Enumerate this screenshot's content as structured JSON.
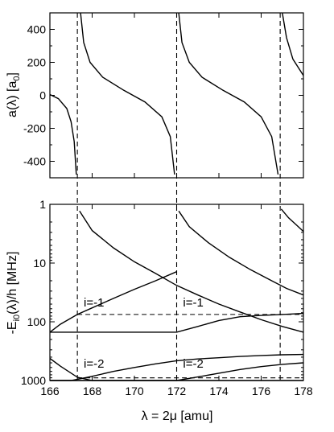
{
  "chart_data": [
    {
      "type": "line",
      "panel": "top",
      "ylabel": "a(λ) [a0]",
      "xlim": [
        166,
        178
      ],
      "ylim": [
        -500,
        500
      ],
      "yticks": [
        400,
        200,
        0,
        -200,
        -400
      ],
      "ytick_labels": [
        "400",
        "200",
        "0",
        "-200",
        "-400"
      ],
      "poles": [
        167.3,
        172.0,
        176.9
      ],
      "series": [
        {
          "values_x": [
            166.0,
            166.4,
            166.8,
            167.0,
            167.15,
            167.25
          ],
          "values_y": [
            5,
            -20,
            -80,
            -160,
            -280,
            -480
          ]
        },
        {
          "values_x": [
            167.45,
            167.6,
            167.9,
            168.5,
            169.5,
            170.5,
            171.3,
            171.7,
            171.9
          ],
          "values_y": [
            500,
            320,
            200,
            110,
            30,
            -40,
            -130,
            -250,
            -480
          ]
        },
        {
          "values_x": [
            172.1,
            172.25,
            172.6,
            173.2,
            174.2,
            175.2,
            176.0,
            176.5,
            176.8
          ],
          "values_y": [
            500,
            320,
            200,
            110,
            30,
            -40,
            -130,
            -250,
            -480
          ]
        },
        {
          "values_x": [
            177.0,
            177.2,
            177.5,
            178.0
          ],
          "values_y": [
            500,
            350,
            220,
            120
          ]
        }
      ]
    },
    {
      "type": "line",
      "panel": "bottom",
      "ylabel": "-Ei0(λ)/h [MHz]",
      "xlabel": "λ = 2μ [amu]",
      "xlim": [
        166,
        178
      ],
      "xticks": [
        166,
        168,
        170,
        172,
        174,
        176,
        178
      ],
      "xtick_labels": [
        "166",
        "168",
        "170",
        "172",
        "174",
        "176",
        "178"
      ],
      "ylim_log": [
        1,
        1000
      ],
      "yscale": "log",
      "yaxis_inverted": true,
      "yticks": [
        1,
        10,
        100,
        1000
      ],
      "ytick_labels": [
        "1",
        "10",
        "100",
        "1000"
      ],
      "horizontal_levels": [
        75,
        900
      ],
      "annotations": [
        {
          "text": "i=-1",
          "x": 167.6,
          "y": 55
        },
        {
          "text": "i=-1",
          "x": 172.3,
          "y": 55
        },
        {
          "text": "i=-2",
          "x": 167.6,
          "y": 600
        },
        {
          "text": "i=-2",
          "x": 172.3,
          "y": 600
        }
      ],
      "series": [
        {
          "values_x": [
            167.4,
            168.0,
            169.0,
            170.0,
            171.0,
            172.0,
            173.0,
            174.0,
            175.0,
            176.0,
            177.0,
            178.0
          ],
          "values_y": [
            1.3,
            2.8,
            5.5,
            9.5,
            15,
            24,
            35,
            50,
            68,
            92,
            120,
            150
          ]
        },
        {
          "values_x": [
            172.1,
            172.6,
            173.5,
            174.5,
            175.5,
            176.5,
            177.2,
            178.0
          ],
          "values_y": [
            1.3,
            2.4,
            4.5,
            8,
            13,
            20,
            27,
            35
          ]
        },
        {
          "values_x": [
            176.95,
            177.3,
            177.7,
            178.0
          ],
          "values_y": [
            1.2,
            1.7,
            2.3,
            2.9
          ]
        },
        {
          "values_x": [
            166.0,
            166.5,
            167.3,
            168.0,
            169.0,
            170.0,
            171.0,
            172.0
          ],
          "values_y": [
            150,
            110,
            75,
            58,
            40,
            28,
            20,
            14
          ]
        },
        {
          "values_x": [
            166.0,
            166.5,
            167.3,
            168.0,
            169.0,
            170.0,
            171.0,
            172.0,
            173.0,
            174.0,
            175.0,
            176.0,
            177.0,
            178.0
          ],
          "values_y": [
            420,
            570,
            880,
            1000,
            1000,
            1000,
            1000,
            1000,
            1000,
            1000,
            1000,
            1000,
            1000,
            1000
          ]
        },
        {
          "values_x": [
            166.0,
            167.0,
            168.0,
            169.0,
            170.0,
            171.0,
            172.0,
            173.0,
            174.0,
            175.0,
            176.0,
            177.0,
            178.0
          ],
          "values_y": [
            150,
            150,
            150,
            150,
            150,
            150,
            150,
            120,
            95,
            82,
            78,
            75,
            72
          ]
        },
        {
          "values_x": [
            166.0,
            167.0,
            168.0,
            169.0,
            170.0,
            171.0,
            172.0,
            173.0,
            174.0,
            175.0,
            176.0,
            177.0,
            178.0
          ],
          "values_y": [
            1000,
            1000,
            850,
            700,
            600,
            520,
            460,
            430,
            410,
            390,
            375,
            365,
            360
          ]
        },
        {
          "values_x": [
            166.0,
            167.0,
            168.0,
            169.0,
            170.0,
            171.0,
            172.0,
            173.0,
            174.0,
            175.0,
            176.0,
            177.0,
            178.0
          ],
          "values_y": [
            1000,
            1000,
            1000,
            1000,
            1000,
            1000,
            1000,
            870,
            750,
            650,
            580,
            530,
            500
          ]
        }
      ]
    }
  ]
}
